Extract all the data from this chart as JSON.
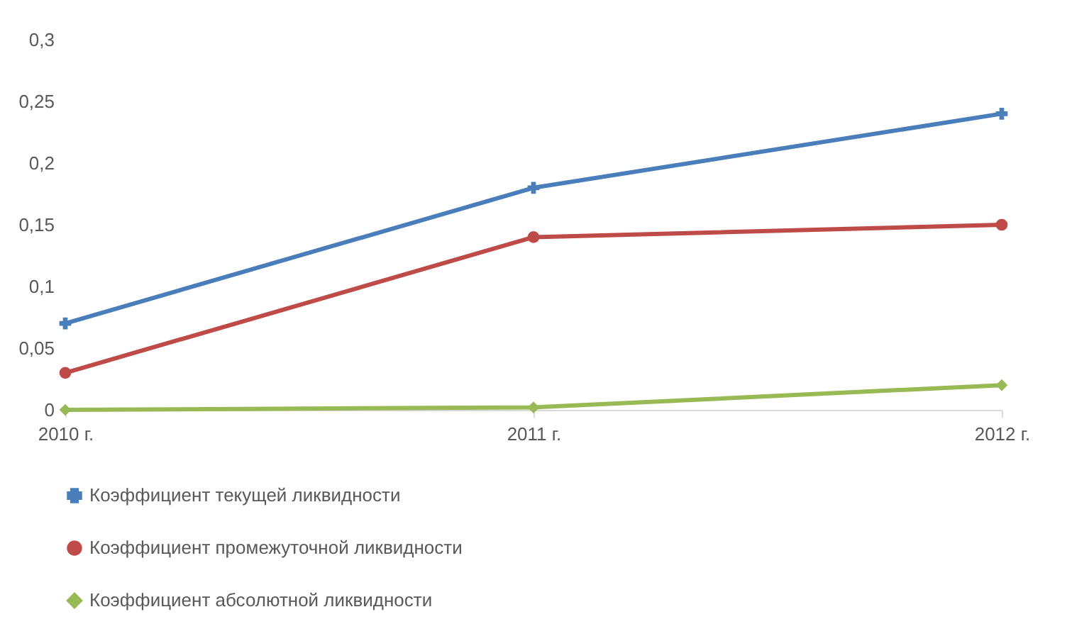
{
  "chart_data": {
    "type": "line",
    "categories": [
      "2010 г.",
      "2011 г.",
      "2012 г."
    ],
    "series": [
      {
        "name": "Коэффициент текущей ликвидности",
        "color": "#4a7ebb",
        "marker": "cross",
        "values": [
          0.07,
          0.18,
          0.24
        ]
      },
      {
        "name": "Коэффициент промежуточной ликвидности",
        "color": "#be4b48",
        "marker": "circle",
        "values": [
          0.03,
          0.14,
          0.15
        ]
      },
      {
        "name": "Коэффициент абсолютной ликвидности",
        "color": "#98b954",
        "marker": "diamond",
        "values": [
          0,
          0.002,
          0.02
        ]
      }
    ],
    "ylim": [
      0,
      0.3
    ],
    "yticks": [
      0,
      {
        "value": 0.05,
        "label": "0,05"
      },
      {
        "value": 0.1,
        "label": "0,1"
      },
      {
        "value": 0.15,
        "label": "0,15"
      },
      {
        "value": 0.2,
        "label": "0,2"
      },
      {
        "value": 0.25,
        "label": "0,25"
      },
      {
        "value": 0.3,
        "label": "0,3"
      }
    ],
    "grid": false,
    "legend": "bottom"
  }
}
